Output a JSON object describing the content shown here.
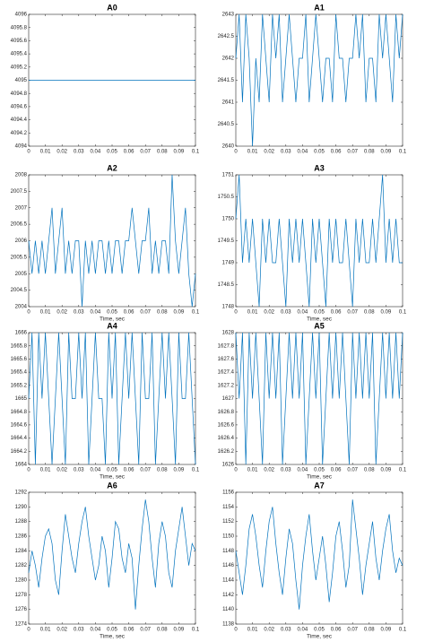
{
  "chart_data": [
    {
      "type": "line",
      "title": "A0",
      "color": "#0072bd",
      "x": [
        0,
        0.002,
        0.004,
        0.006,
        0.008,
        0.01,
        0.012,
        0.014,
        0.016,
        0.018,
        0.02,
        0.022,
        0.024,
        0.026,
        0.028,
        0.03,
        0.032,
        0.034,
        0.036,
        0.038,
        0.04,
        0.042,
        0.044,
        0.046,
        0.048,
        0.05,
        0.052,
        0.054,
        0.056,
        0.058,
        0.06,
        0.062,
        0.064,
        0.066,
        0.068,
        0.07,
        0.072,
        0.074,
        0.076,
        0.078,
        0.08,
        0.082,
        0.084,
        0.086,
        0.088,
        0.09,
        0.092,
        0.094,
        0.096,
        0.098,
        0.1
      ],
      "values": [
        4095,
        4095,
        4095,
        4095,
        4095,
        4095,
        4095,
        4095,
        4095,
        4095,
        4095,
        4095,
        4095,
        4095,
        4095,
        4095,
        4095,
        4095,
        4095,
        4095,
        4095,
        4095,
        4095,
        4095,
        4095,
        4095,
        4095,
        4095,
        4095,
        4095,
        4095,
        4095,
        4095,
        4095,
        4095,
        4095,
        4095,
        4095,
        4095,
        4095,
        4095,
        4095,
        4095,
        4095,
        4095,
        4095,
        4095,
        4095,
        4095,
        4095,
        4095
      ],
      "xlim": [
        0,
        0.1
      ],
      "xticks": [
        0,
        0.01,
        0.02,
        0.03,
        0.04,
        0.05,
        0.06,
        0.07,
        0.08,
        0.09,
        0.1
      ],
      "ylim": [
        4094,
        4096
      ],
      "yticks": [
        4094,
        4094.2,
        4094.4,
        4094.6,
        4094.8,
        4095,
        4095.2,
        4095.4,
        4095.6,
        4095.8,
        4096
      ]
    },
    {
      "type": "line",
      "title": "A1",
      "color": "#0072bd",
      "x": [
        0,
        0.002,
        0.004,
        0.006,
        0.008,
        0.01,
        0.012,
        0.014,
        0.016,
        0.018,
        0.02,
        0.022,
        0.024,
        0.026,
        0.028,
        0.03,
        0.032,
        0.034,
        0.036,
        0.038,
        0.04,
        0.042,
        0.044,
        0.046,
        0.048,
        0.05,
        0.052,
        0.054,
        0.056,
        0.058,
        0.06,
        0.062,
        0.064,
        0.066,
        0.068,
        0.07,
        0.072,
        0.074,
        0.076,
        0.078,
        0.08,
        0.082,
        0.084,
        0.086,
        0.088,
        0.09,
        0.092,
        0.094,
        0.096,
        0.098,
        0.1
      ],
      "values": [
        2642,
        2643,
        2641,
        2643,
        2642,
        2640,
        2642,
        2641,
        2643,
        2642,
        2641,
        2643,
        2642,
        2643,
        2641,
        2642,
        2643,
        2642,
        2641,
        2642,
        2642,
        2643,
        2641,
        2642,
        2643,
        2642,
        2641,
        2642,
        2642,
        2641,
        2643,
        2642,
        2642,
        2641,
        2642,
        2642,
        2643,
        2642,
        2643,
        2641,
        2642,
        2642,
        2641,
        2643,
        2642,
        2643,
        2642,
        2641,
        2643,
        2642,
        2643
      ],
      "xlim": [
        0,
        0.1
      ],
      "xticks": [
        0,
        0.01,
        0.02,
        0.03,
        0.04,
        0.05,
        0.06,
        0.07,
        0.08,
        0.09,
        0.1
      ],
      "ylim": [
        2640,
        2643
      ],
      "yticks": [
        2640,
        2640.5,
        2641,
        2641.5,
        2642,
        2642.5,
        2643
      ]
    },
    {
      "type": "line",
      "title": "A2",
      "xlabel": "Time, sec",
      "color": "#0072bd",
      "x": [
        0,
        0.002,
        0.004,
        0.006,
        0.008,
        0.01,
        0.012,
        0.014,
        0.016,
        0.018,
        0.02,
        0.022,
        0.024,
        0.026,
        0.028,
        0.03,
        0.032,
        0.034,
        0.036,
        0.038,
        0.04,
        0.042,
        0.044,
        0.046,
        0.048,
        0.05,
        0.052,
        0.054,
        0.056,
        0.058,
        0.06,
        0.062,
        0.064,
        0.066,
        0.068,
        0.07,
        0.072,
        0.074,
        0.076,
        0.078,
        0.08,
        0.082,
        0.084,
        0.086,
        0.088,
        0.09,
        0.092,
        0.094,
        0.096,
        0.098,
        0.1
      ],
      "values": [
        2006,
        2005,
        2006,
        2005,
        2006,
        2005,
        2006,
        2007,
        2005,
        2006,
        2007,
        2005,
        2006,
        2005,
        2006,
        2006,
        2004,
        2006,
        2005,
        2006,
        2005,
        2006,
        2006,
        2005,
        2006,
        2005,
        2006,
        2006,
        2005,
        2006,
        2006,
        2007,
        2006,
        2005,
        2006,
        2006,
        2007,
        2005,
        2006,
        2005,
        2006,
        2006,
        2005,
        2008,
        2006,
        2005,
        2006,
        2007,
        2005,
        2004,
        2005
      ],
      "xlim": [
        0,
        0.1
      ],
      "xticks": [
        0,
        0.01,
        0.02,
        0.03,
        0.04,
        0.05,
        0.06,
        0.07,
        0.08,
        0.09,
        0.1
      ],
      "ylim": [
        2004,
        2008
      ],
      "yticks": [
        2004,
        2004.5,
        2005,
        2005.5,
        2006,
        2006.5,
        2007,
        2007.5,
        2008
      ]
    },
    {
      "type": "line",
      "title": "A3",
      "xlabel": "Time, sec",
      "color": "#0072bd",
      "x": [
        0,
        0.002,
        0.004,
        0.006,
        0.008,
        0.01,
        0.012,
        0.014,
        0.016,
        0.018,
        0.02,
        0.022,
        0.024,
        0.026,
        0.028,
        0.03,
        0.032,
        0.034,
        0.036,
        0.038,
        0.04,
        0.042,
        0.044,
        0.046,
        0.048,
        0.05,
        0.052,
        0.054,
        0.056,
        0.058,
        0.06,
        0.062,
        0.064,
        0.066,
        0.068,
        0.07,
        0.072,
        0.074,
        0.076,
        0.078,
        0.08,
        0.082,
        0.084,
        0.086,
        0.088,
        0.09,
        0.092,
        0.094,
        0.096,
        0.098,
        0.1
      ],
      "values": [
        1750,
        1751,
        1749,
        1750,
        1749,
        1750,
        1749,
        1748,
        1750,
        1749,
        1750,
        1749,
        1749,
        1750,
        1749,
        1748,
        1750,
        1749,
        1750,
        1749,
        1750,
        1749,
        1748,
        1750,
        1749,
        1750,
        1749,
        1748,
        1750,
        1749,
        1750,
        1749,
        1749,
        1750,
        1749,
        1748,
        1750,
        1749,
        1750,
        1749,
        1749,
        1750,
        1749,
        1750,
        1751,
        1749,
        1750,
        1749,
        1750,
        1749,
        1749
      ],
      "xlim": [
        0,
        0.1
      ],
      "xticks": [
        0,
        0.01,
        0.02,
        0.03,
        0.04,
        0.05,
        0.06,
        0.07,
        0.08,
        0.09,
        0.1
      ],
      "ylim": [
        1748,
        1751
      ],
      "yticks": [
        1748,
        1748.5,
        1749,
        1749.5,
        1750,
        1750.5,
        1751
      ]
    },
    {
      "type": "line",
      "title": "A4",
      "xlabel": "Time, sec",
      "color": "#0072bd",
      "x": [
        0,
        0.002,
        0.004,
        0.006,
        0.008,
        0.01,
        0.012,
        0.014,
        0.016,
        0.018,
        0.02,
        0.022,
        0.024,
        0.026,
        0.028,
        0.03,
        0.032,
        0.034,
        0.036,
        0.038,
        0.04,
        0.042,
        0.044,
        0.046,
        0.048,
        0.05,
        0.052,
        0.054,
        0.056,
        0.058,
        0.06,
        0.062,
        0.064,
        0.066,
        0.068,
        0.07,
        0.072,
        0.074,
        0.076,
        0.078,
        0.08,
        0.082,
        0.084,
        0.086,
        0.088,
        0.09,
        0.092,
        0.094,
        0.096,
        0.098,
        0.1
      ],
      "values": [
        1665,
        1666,
        1664,
        1666,
        1665,
        1666,
        1665,
        1664,
        1665,
        1666,
        1665,
        1664,
        1666,
        1665,
        1665,
        1666,
        1665,
        1666,
        1664,
        1665,
        1666,
        1665,
        1665,
        1664,
        1666,
        1665,
        1666,
        1664,
        1665,
        1666,
        1665,
        1666,
        1665,
        1664,
        1666,
        1665,
        1665,
        1666,
        1664,
        1665,
        1666,
        1665,
        1666,
        1665,
        1664,
        1666,
        1665,
        1665,
        1666,
        1665,
        1664
      ],
      "xlim": [
        0,
        0.1
      ],
      "xticks": [
        0,
        0.01,
        0.02,
        0.03,
        0.04,
        0.05,
        0.06,
        0.07,
        0.08,
        0.09,
        0.1
      ],
      "ylim": [
        1664,
        1666
      ],
      "yticks": [
        1664,
        1664.2,
        1664.4,
        1664.6,
        1664.8,
        1665,
        1665.2,
        1665.4,
        1665.6,
        1665.8,
        1666
      ]
    },
    {
      "type": "line",
      "title": "A5",
      "xlabel": "Time, sec",
      "color": "#0072bd",
      "x": [
        0,
        0.002,
        0.004,
        0.006,
        0.008,
        0.01,
        0.012,
        0.014,
        0.016,
        0.018,
        0.02,
        0.022,
        0.024,
        0.026,
        0.028,
        0.03,
        0.032,
        0.034,
        0.036,
        0.038,
        0.04,
        0.042,
        0.044,
        0.046,
        0.048,
        0.05,
        0.052,
        0.054,
        0.056,
        0.058,
        0.06,
        0.062,
        0.064,
        0.066,
        0.068,
        0.07,
        0.072,
        0.074,
        0.076,
        0.078,
        0.08,
        0.082,
        0.084,
        0.086,
        0.088,
        0.09,
        0.092,
        0.094,
        0.096,
        0.098,
        0.1
      ],
      "values": [
        1628,
        1627,
        1628,
        1626,
        1628,
        1627,
        1628,
        1627,
        1626,
        1628,
        1627,
        1628,
        1627,
        1628,
        1626,
        1627,
        1628,
        1627,
        1628,
        1627,
        1628,
        1626,
        1627,
        1628,
        1627,
        1628,
        1626,
        1627,
        1628,
        1627,
        1628,
        1627,
        1628,
        1627,
        1626,
        1628,
        1627,
        1628,
        1627,
        1628,
        1627,
        1628,
        1626,
        1627,
        1628,
        1627,
        1628,
        1627,
        1628,
        1627,
        1628
      ],
      "xlim": [
        0,
        0.1
      ],
      "xticks": [
        0,
        0.01,
        0.02,
        0.03,
        0.04,
        0.05,
        0.06,
        0.07,
        0.08,
        0.09,
        0.1
      ],
      "ylim": [
        1626,
        1628
      ],
      "yticks": [
        1626,
        1626.2,
        1626.4,
        1626.6,
        1626.8,
        1627,
        1627.2,
        1627.4,
        1627.6,
        1627.8,
        1628
      ]
    },
    {
      "type": "line",
      "title": "A6",
      "xlabel": "Time, sec",
      "color": "#0072bd",
      "x": [
        0,
        0.002,
        0.004,
        0.006,
        0.008,
        0.01,
        0.012,
        0.014,
        0.016,
        0.018,
        0.02,
        0.022,
        0.024,
        0.026,
        0.028,
        0.03,
        0.032,
        0.034,
        0.036,
        0.038,
        0.04,
        0.042,
        0.044,
        0.046,
        0.048,
        0.05,
        0.052,
        0.054,
        0.056,
        0.058,
        0.06,
        0.062,
        0.064,
        0.066,
        0.068,
        0.07,
        0.072,
        0.074,
        0.076,
        0.078,
        0.08,
        0.082,
        0.084,
        0.086,
        0.088,
        0.09,
        0.092,
        0.094,
        0.096,
        0.098,
        0.1
      ],
      "values": [
        1281,
        1284,
        1282,
        1279,
        1283,
        1286,
        1287,
        1285,
        1280,
        1278,
        1284,
        1289,
        1286,
        1283,
        1281,
        1285,
        1288,
        1290,
        1286,
        1283,
        1280,
        1282,
        1286,
        1284,
        1279,
        1283,
        1288,
        1287,
        1283,
        1281,
        1285,
        1283,
        1276,
        1282,
        1287,
        1291,
        1288,
        1283,
        1279,
        1285,
        1288,
        1286,
        1281,
        1279,
        1284,
        1287,
        1290,
        1286,
        1282,
        1285,
        1284
      ],
      "xlim": [
        0,
        0.1
      ],
      "xticks": [
        0,
        0.01,
        0.02,
        0.03,
        0.04,
        0.05,
        0.06,
        0.07,
        0.08,
        0.09,
        0.1
      ],
      "ylim": [
        1274,
        1292
      ],
      "yticks": [
        1274,
        1276,
        1278,
        1280,
        1282,
        1284,
        1286,
        1288,
        1290,
        1292
      ]
    },
    {
      "type": "line",
      "title": "A7",
      "xlabel": "Time, sec",
      "color": "#0072bd",
      "x": [
        0,
        0.002,
        0.004,
        0.006,
        0.008,
        0.01,
        0.012,
        0.014,
        0.016,
        0.018,
        0.02,
        0.022,
        0.024,
        0.026,
        0.028,
        0.03,
        0.032,
        0.034,
        0.036,
        0.038,
        0.04,
        0.042,
        0.044,
        0.046,
        0.048,
        0.05,
        0.052,
        0.054,
        0.056,
        0.058,
        0.06,
        0.062,
        0.064,
        0.066,
        0.068,
        0.07,
        0.072,
        0.074,
        0.076,
        0.078,
        0.08,
        0.082,
        0.084,
        0.086,
        0.088,
        0.09,
        0.092,
        0.094,
        0.096,
        0.098,
        0.1
      ],
      "values": [
        1148,
        1145,
        1142,
        1146,
        1151,
        1153,
        1150,
        1146,
        1143,
        1148,
        1152,
        1154,
        1149,
        1145,
        1142,
        1147,
        1151,
        1149,
        1144,
        1140,
        1146,
        1150,
        1153,
        1148,
        1144,
        1147,
        1150,
        1146,
        1141,
        1145,
        1150,
        1152,
        1148,
        1143,
        1146,
        1155,
        1151,
        1147,
        1142,
        1146,
        1149,
        1152,
        1147,
        1144,
        1148,
        1151,
        1153,
        1148,
        1145,
        1147,
        1146
      ],
      "xlim": [
        0,
        0.1
      ],
      "xticks": [
        0,
        0.01,
        0.02,
        0.03,
        0.04,
        0.05,
        0.06,
        0.07,
        0.08,
        0.09,
        0.1
      ],
      "ylim": [
        1138,
        1156
      ],
      "yticks": [
        1138,
        1140,
        1142,
        1144,
        1146,
        1148,
        1150,
        1152,
        1154,
        1156
      ]
    }
  ]
}
